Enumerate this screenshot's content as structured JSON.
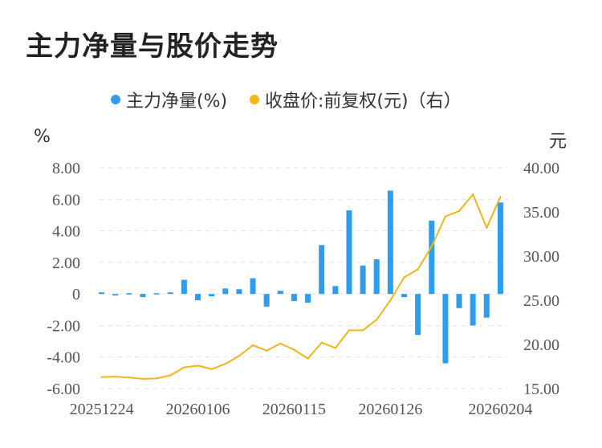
{
  "title": "主力净量与股价走势",
  "legend": [
    {
      "label": "主力净量(%)",
      "color": "#2e9ded"
    },
    {
      "label": "收盘价:前复权(元)（右）",
      "color": "#f2b51a"
    }
  ],
  "left_unit": "%",
  "right_unit": "元",
  "chart_data": {
    "type": "bar",
    "x_tick_labels": [
      "20251224",
      "20260106",
      "20260115",
      "20260126",
      "20260204"
    ],
    "left_axis": {
      "ticks": [
        "8.00",
        "6.00",
        "4.00",
        "2.00",
        "0",
        "-2.00",
        "-4.00",
        "-6.00"
      ],
      "range": [
        -6,
        8
      ]
    },
    "right_axis": {
      "ticks": [
        "40.00",
        "35.00",
        "30.00",
        "25.00",
        "20.00",
        "15.00"
      ],
      "range": [
        15,
        40
      ]
    },
    "grid": "horizontal dashed",
    "legend_position": "top",
    "series": [
      {
        "name": "主力净量(%)",
        "type": "bar",
        "axis": "left",
        "color": "#2e9ded",
        "values": [
          0.1,
          -0.1,
          0.05,
          -0.2,
          0.05,
          0.1,
          0.9,
          -0.4,
          -0.15,
          0.35,
          0.3,
          1.0,
          -0.8,
          0.2,
          -0.45,
          -0.55,
          3.1,
          0.5,
          5.3,
          1.8,
          2.2,
          6.55,
          -0.2,
          -2.6,
          4.65,
          -4.4,
          -0.9,
          -2.0,
          -1.5,
          5.8
        ]
      },
      {
        "name": "收盘价:前复权(元)（右）",
        "type": "line",
        "axis": "right",
        "color": "#f2b51a",
        "values": [
          16.3,
          16.35,
          16.25,
          16.1,
          16.15,
          16.5,
          17.4,
          17.6,
          17.2,
          17.8,
          18.7,
          19.9,
          19.3,
          20.1,
          19.4,
          18.4,
          20.2,
          19.6,
          21.6,
          21.6,
          22.8,
          25.0,
          27.6,
          28.5,
          31.1,
          34.5,
          35.1,
          37.0,
          33.2,
          36.7
        ]
      }
    ]
  }
}
